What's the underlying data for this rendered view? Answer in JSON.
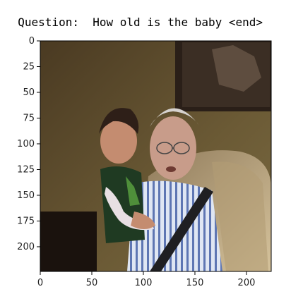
{
  "header": {
    "question_prefix": "Question:",
    "question_text": "How old is the baby <end>"
  },
  "chart_data": {
    "type": "image",
    "title": "",
    "xlabel": "",
    "ylabel": "",
    "xlim": [
      0,
      224
    ],
    "ylim": [
      224,
      0
    ],
    "x_ticks": [
      0,
      50,
      100,
      150,
      200
    ],
    "y_ticks": [
      0,
      25,
      50,
      75,
      100,
      125,
      150,
      175,
      200
    ],
    "grid": false,
    "image_subject": "Elderly man in striped shirt holding a baby on a couch",
    "colors": {
      "wall": "#5a4a2a",
      "frame": "#2a1f18",
      "shirt_stripes": "#7f98c7",
      "couch": "#c9b38c",
      "background_dark": "#1a120d"
    }
  }
}
